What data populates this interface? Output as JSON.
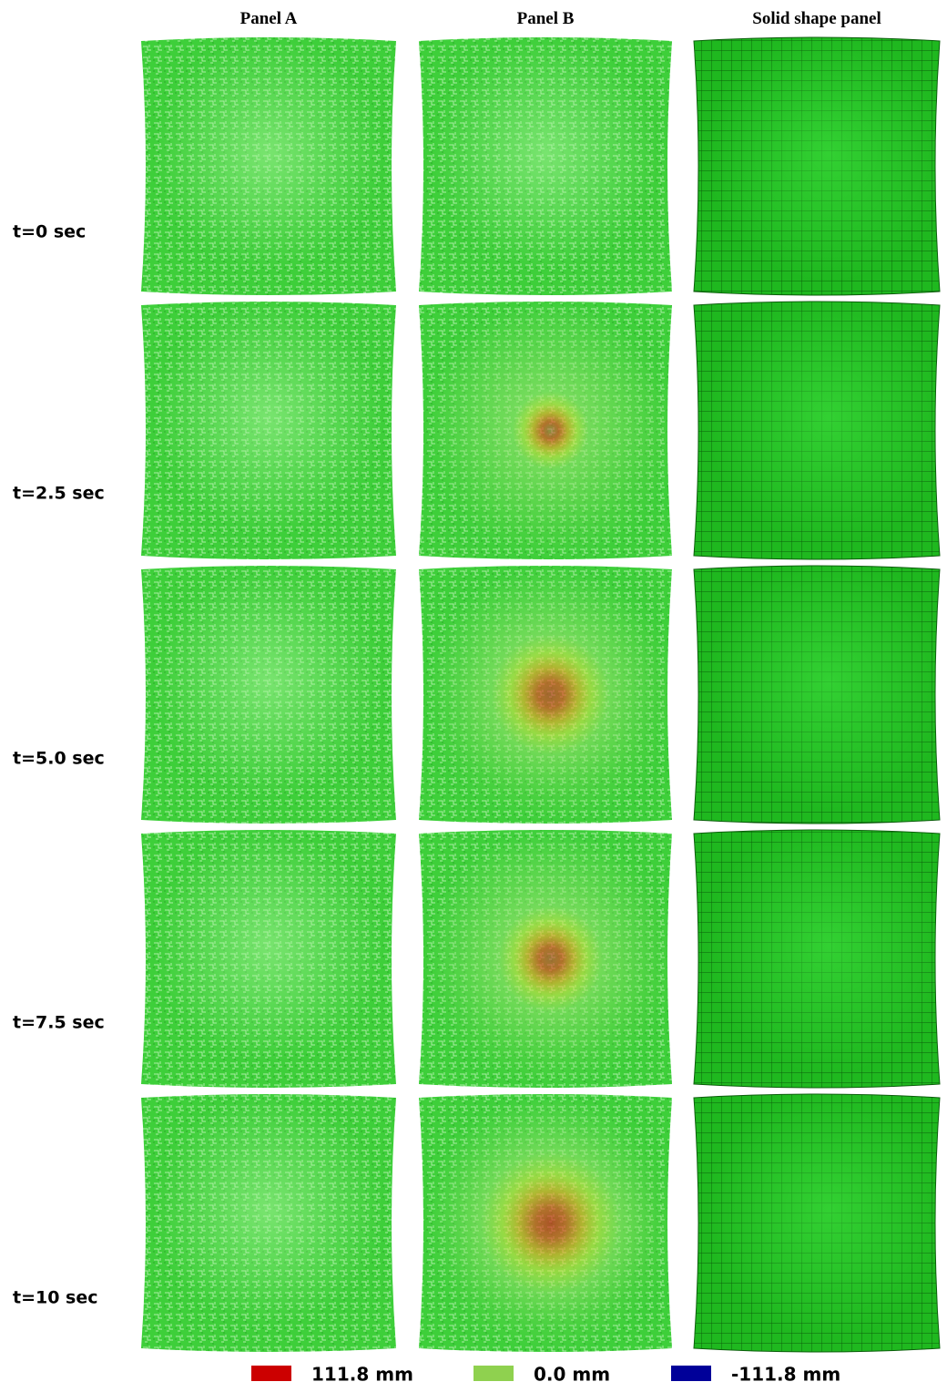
{
  "columns": [
    "Panel A",
    "Panel B",
    "Solid shape panel"
  ],
  "rows": [
    "t=0 sec",
    "t=2.5 sec",
    "t=5.0 sec",
    "t=7.5 sec",
    "t=10 sec"
  ],
  "legend": [
    {
      "label": "111.8 mm",
      "color": "#cc0000"
    },
    {
      "label": "0.0 mm",
      "color": "#8fd14f"
    },
    {
      "label": "-111.8 mm",
      "color": "#000099"
    }
  ]
}
